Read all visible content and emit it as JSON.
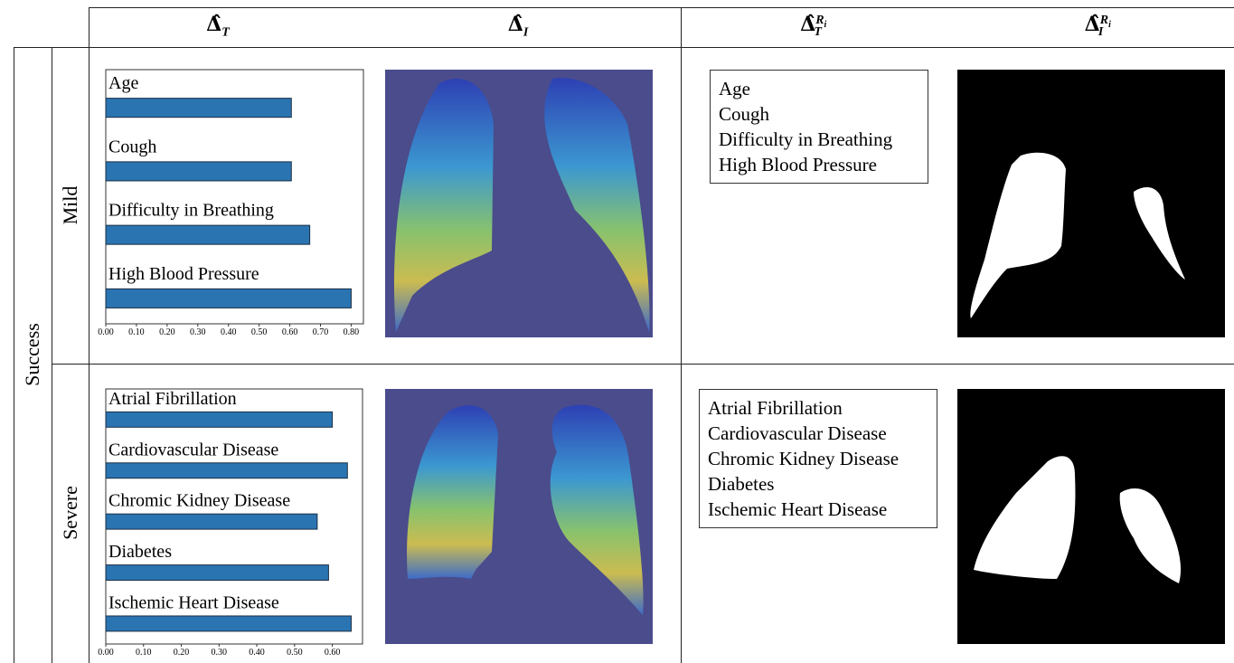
{
  "header": {
    "columns": [
      {
        "symbol": "Δ̂",
        "sub": "T"
      },
      {
        "symbol": "Δ̂",
        "sub": "I"
      },
      {
        "symbol": "Δ̂",
        "sub": "T",
        "sup": "R",
        "sup_sub": "i"
      },
      {
        "symbol": "Δ̂",
        "sub": "I",
        "sup": "R",
        "sup_sub": "i"
      }
    ]
  },
  "group": "Success",
  "rows": [
    {
      "label": "Mild",
      "chart": {
        "type": "bar",
        "orientation": "horizontal",
        "color": "#2b74b2",
        "categories": [
          "Age",
          "Cough",
          "Difficulty in Breathing",
          "High Blood Pressure"
        ],
        "values": [
          0.605,
          0.605,
          0.665,
          0.8
        ],
        "xlim": [
          0,
          0.84
        ],
        "xticks": [
          {
            "value": 0,
            "label": "0.00"
          },
          {
            "value": 0.1,
            "label": "0.10"
          },
          {
            "value": 0.2,
            "label": "0.20"
          },
          {
            "value": 0.3,
            "label": "0.30"
          },
          {
            "value": 0.4,
            "label": "0.40"
          },
          {
            "value": 0.5,
            "label": "0.50"
          },
          {
            "value": 0.6,
            "label": "0.60"
          },
          {
            "value": 0.7,
            "label": "0.70"
          },
          {
            "value": 0.8,
            "label": "0.80"
          }
        ]
      },
      "relevant_features": [
        "Age",
        "Cough",
        "Difficulty in Breathing",
        "High Blood Pressure"
      ]
    },
    {
      "label": "Severe",
      "chart": {
        "type": "bar",
        "orientation": "horizontal",
        "color": "#2b74b2",
        "categories": [
          "Atrial Fibrillation",
          "Cardiovascular Disease",
          "Chromic Kidney Disease",
          "Diabetes",
          "Ischemic Heart Disease"
        ],
        "values": [
          0.6,
          0.64,
          0.56,
          0.59,
          0.65
        ],
        "xlim": [
          0,
          0.68
        ],
        "xticks": [
          {
            "value": 0,
            "label": "0.00"
          },
          {
            "value": 0.1,
            "label": "0.10"
          },
          {
            "value": 0.2,
            "label": "0.20"
          },
          {
            "value": 0.3,
            "label": "0.30"
          },
          {
            "value": 0.4,
            "label": "0.40"
          },
          {
            "value": 0.5,
            "label": "0.50"
          },
          {
            "value": 0.6,
            "label": "0.60"
          }
        ]
      },
      "relevant_features": [
        "Atrial Fibrillation",
        "Cardiovascular Disease",
        "Chromic Kidney Disease",
        "Diabetes",
        "Ischemic Heart Disease"
      ]
    }
  ]
}
